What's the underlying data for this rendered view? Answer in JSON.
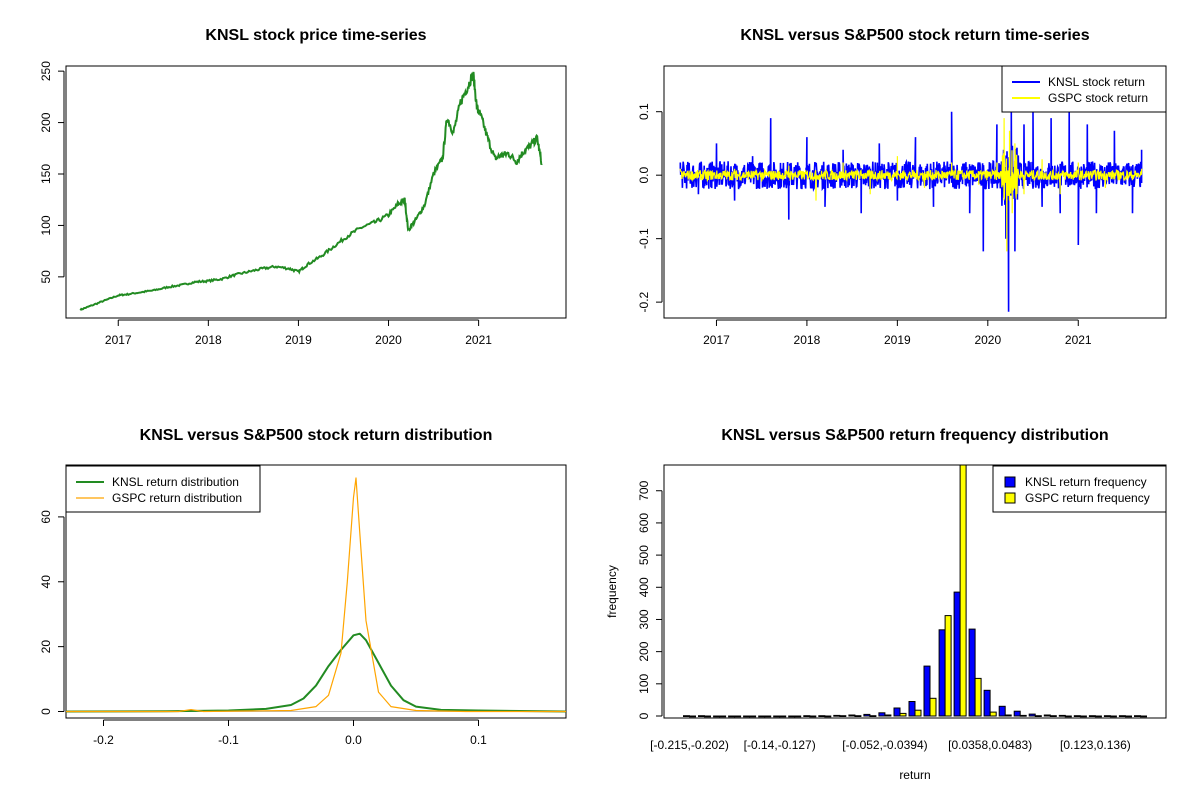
{
  "chart_data": [
    {
      "id": "price",
      "type": "line",
      "title": "KNSL stock price time-series",
      "xlabel": "",
      "ylabel": "",
      "x_ticks": [
        "2017",
        "2018",
        "2019",
        "2020",
        "2021"
      ],
      "y_ticks": [
        "50",
        "100",
        "150",
        "200",
        "250"
      ],
      "xlim": [
        2016.42,
        2021.97
      ],
      "ylim": [
        10,
        255
      ],
      "series": [
        {
          "color": "#228b22",
          "x": [
            2016.58,
            2016.7,
            2016.85,
            2017.0,
            2017.1,
            2017.25,
            2017.4,
            2017.55,
            2017.7,
            2017.85,
            2018.0,
            2018.15,
            2018.3,
            2018.45,
            2018.6,
            2018.75,
            2018.9,
            2019.0,
            2019.1,
            2019.25,
            2019.4,
            2019.55,
            2019.7,
            2019.85,
            2020.0,
            2020.1,
            2020.18,
            2020.22,
            2020.3,
            2020.4,
            2020.5,
            2020.6,
            2020.65,
            2020.72,
            2020.8,
            2020.88,
            2020.94,
            2020.98,
            2021.03,
            2021.1,
            2021.18,
            2021.25,
            2021.33,
            2021.42,
            2021.5,
            2021.58,
            2021.65,
            2021.7
          ],
          "values": [
            18,
            22,
            27,
            32,
            33,
            35,
            37,
            40,
            42,
            45,
            46,
            48,
            52,
            55,
            58,
            60,
            58,
            55,
            62,
            70,
            80,
            90,
            98,
            103,
            110,
            120,
            125,
            95,
            105,
            120,
            150,
            165,
            205,
            190,
            220,
            235,
            248,
            215,
            205,
            185,
            165,
            168,
            170,
            162,
            172,
            178,
            185,
            160
          ]
        }
      ]
    },
    {
      "id": "returns",
      "type": "line",
      "title": "KNSL versus S&P500 stock return time-series",
      "xlabel": "",
      "ylabel": "",
      "x_ticks": [
        "2017",
        "2018",
        "2019",
        "2020",
        "2021"
      ],
      "y_ticks": [
        "-0.2",
        "-0.1",
        "0.0",
        "0.1"
      ],
      "xlim": [
        2016.42,
        2021.97
      ],
      "ylim": [
        -0.225,
        0.172
      ],
      "legend": {
        "position": "top-right"
      },
      "series": [
        {
          "name": "KNSL stock return",
          "color": "#0000ff",
          "x": [
            2016.6,
            2016.8,
            2017.0,
            2017.2,
            2017.4,
            2017.6,
            2017.8,
            2018.0,
            2018.2,
            2018.4,
            2018.6,
            2018.8,
            2019.0,
            2019.2,
            2019.4,
            2019.6,
            2019.8,
            2019.95,
            2020.1,
            2020.2,
            2020.23,
            2020.26,
            2020.3,
            2020.4,
            2020.5,
            2020.6,
            2020.7,
            2020.8,
            2020.9,
            2021.0,
            2021.1,
            2021.2,
            2021.4,
            2021.6,
            2021.7
          ],
          "values": [
            0.02,
            -0.03,
            0.05,
            -0.04,
            0.03,
            0.09,
            -0.07,
            0.06,
            -0.05,
            0.04,
            -0.06,
            0.05,
            -0.04,
            0.06,
            -0.05,
            0.1,
            -0.06,
            -0.12,
            0.08,
            -0.1,
            -0.215,
            0.1,
            -0.12,
            0.08,
            0.1,
            -0.05,
            0.09,
            -0.06,
            0.1,
            -0.11,
            0.08,
            -0.06,
            0.07,
            -0.06,
            0.04
          ]
        },
        {
          "name": "GSPC stock return",
          "color": "#ffff00",
          "x": [
            2016.6,
            2016.9,
            2017.2,
            2017.5,
            2017.8,
            2018.1,
            2018.4,
            2018.7,
            2019.0,
            2019.3,
            2019.6,
            2019.9,
            2020.1,
            2020.18,
            2020.21,
            2020.24,
            2020.27,
            2020.3,
            2020.4,
            2020.6,
            2020.8,
            2021.0,
            2021.3,
            2021.7
          ],
          "values": [
            0.01,
            -0.01,
            0.01,
            -0.01,
            0.015,
            -0.04,
            0.02,
            -0.03,
            0.03,
            -0.02,
            0.02,
            -0.015,
            0.02,
            0.09,
            -0.12,
            0.07,
            -0.06,
            0.05,
            -0.03,
            0.025,
            -0.03,
            0.02,
            -0.02,
            0.01
          ]
        }
      ]
    },
    {
      "id": "density",
      "type": "line",
      "title": "KNSL versus S&P500 stock return distribution",
      "xlabel": "",
      "ylabel": "",
      "x_ticks": [
        "-0.2",
        "-0.1",
        "0.0",
        "0.1"
      ],
      "y_ticks": [
        "0",
        "20",
        "40",
        "60"
      ],
      "xlim": [
        -0.23,
        0.17
      ],
      "ylim": [
        -2,
        76
      ],
      "legend": {
        "position": "top-left"
      },
      "series": [
        {
          "name": "KNSL return distribution",
          "color": "#228b22",
          "x": [
            -0.23,
            -0.15,
            -0.1,
            -0.07,
            -0.05,
            -0.04,
            -0.03,
            -0.02,
            -0.01,
            0.0,
            0.005,
            0.01,
            0.02,
            0.03,
            0.04,
            0.05,
            0.07,
            0.1,
            0.17
          ],
          "values": [
            0,
            0.1,
            0.3,
            0.8,
            2,
            4,
            8,
            14,
            19,
            23.5,
            24,
            22,
            15,
            8,
            3.5,
            1.5,
            0.5,
            0.3,
            0
          ]
        },
        {
          "name": "GSPC return distribution",
          "color": "#ffa500",
          "x": [
            -0.23,
            -0.14,
            -0.13,
            -0.12,
            -0.05,
            -0.03,
            -0.02,
            -0.01,
            -0.005,
            0.0,
            0.002,
            0.005,
            0.01,
            0.02,
            0.03,
            0.05,
            0.09,
            0.17
          ],
          "values": [
            0,
            0,
            0.6,
            0,
            0.3,
            1.5,
            5,
            18,
            40,
            66,
            72,
            55,
            28,
            6,
            1.5,
            0.3,
            0,
            0
          ]
        }
      ]
    },
    {
      "id": "hist",
      "type": "bar",
      "title": "KNSL versus S&P500 return frequency distribution",
      "xlabel": "return",
      "ylabel": "frequency",
      "x_ticks": [
        "[-0.215,-0.202)",
        "[-0.14,-0.127)",
        "[-0.052,-0.0394)",
        "[0.0358,0.0483)",
        "[0.123,0.136)"
      ],
      "x_tick_bins": [
        0,
        6,
        13,
        20,
        27
      ],
      "y_ticks": [
        "0",
        "100",
        "200",
        "300",
        "400",
        "500",
        "600",
        "700"
      ],
      "ylim": [
        0,
        780
      ],
      "legend": {
        "position": "top-right"
      },
      "series": [
        {
          "name": "KNSL return frequency",
          "color": "#0000ff",
          "values": [
            1,
            1,
            0,
            0,
            0,
            0,
            0,
            0,
            1,
            1,
            2,
            3,
            5,
            10,
            25,
            45,
            155,
            268,
            385,
            270,
            80,
            30,
            15,
            6,
            3,
            2,
            1,
            1,
            1,
            1,
            1
          ]
        },
        {
          "name": "GSPC return frequency",
          "color": "#ffff00",
          "values": [
            0,
            0,
            0,
            0,
            0,
            0,
            0,
            0,
            0,
            0,
            1,
            1,
            1,
            3,
            8,
            18,
            55,
            312,
            800,
            117,
            12,
            3,
            2,
            1,
            1,
            0,
            0,
            0,
            0,
            0,
            0
          ]
        }
      ]
    }
  ]
}
